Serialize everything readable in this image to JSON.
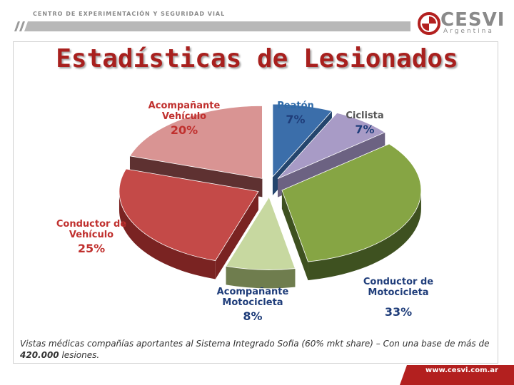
{
  "header": {
    "org_name": "CENTRO DE EXPERIMENTACIÓN Y SEGURIDAD VIAL"
  },
  "logo": {
    "word": "CESVI",
    "sub": "Argentina"
  },
  "colors": {
    "brand_red": "#b3201f",
    "title_red": "#a8201e",
    "label_red": "#c0302e",
    "label_blue": "#2f6aa8",
    "label_navy": "#1f3d7a"
  },
  "chart_data": {
    "type": "pie",
    "title": "Estadísticas de Lesionados",
    "slices": [
      {
        "label_lines": [
          "Peatón"
        ],
        "value": 7,
        "value_label": "7%",
        "color": "#3b6eaa",
        "side": "#24456d"
      },
      {
        "label_lines": [
          "Ciclista"
        ],
        "value": 7,
        "value_label": "7%",
        "color": "#a89bc6",
        "side": "#6c6282"
      },
      {
        "label_lines": [
          "Conductor de",
          "Motocicleta"
        ],
        "value": 33,
        "value_label": "33%",
        "color": "#86a544",
        "side": "#3e5120"
      },
      {
        "label_lines": [
          "Acompañante",
          "Motocicleta"
        ],
        "value": 8,
        "value_label": "8%",
        "color": "#c7d8a0",
        "side": "#6f7d4e"
      },
      {
        "label_lines": [
          "Conductor de",
          "Vehículo"
        ],
        "value": 25,
        "value_label": "25%",
        "color": "#c44a48",
        "side": "#7a2322"
      },
      {
        "label_lines": [
          "Acompañante",
          "Vehículo"
        ],
        "value": 20,
        "value_label": "20%",
        "color": "#d99493",
        "side": "#5e3131"
      }
    ]
  },
  "caption": {
    "text_before": "Vistas médicas compañías aportantes al Sistema Integrado Sofia (60% mkt share) – Con una base de más de ",
    "bold": "420.000",
    "text_after": " lesiones."
  },
  "footer": {
    "url": "www.cesvi.com.ar"
  }
}
